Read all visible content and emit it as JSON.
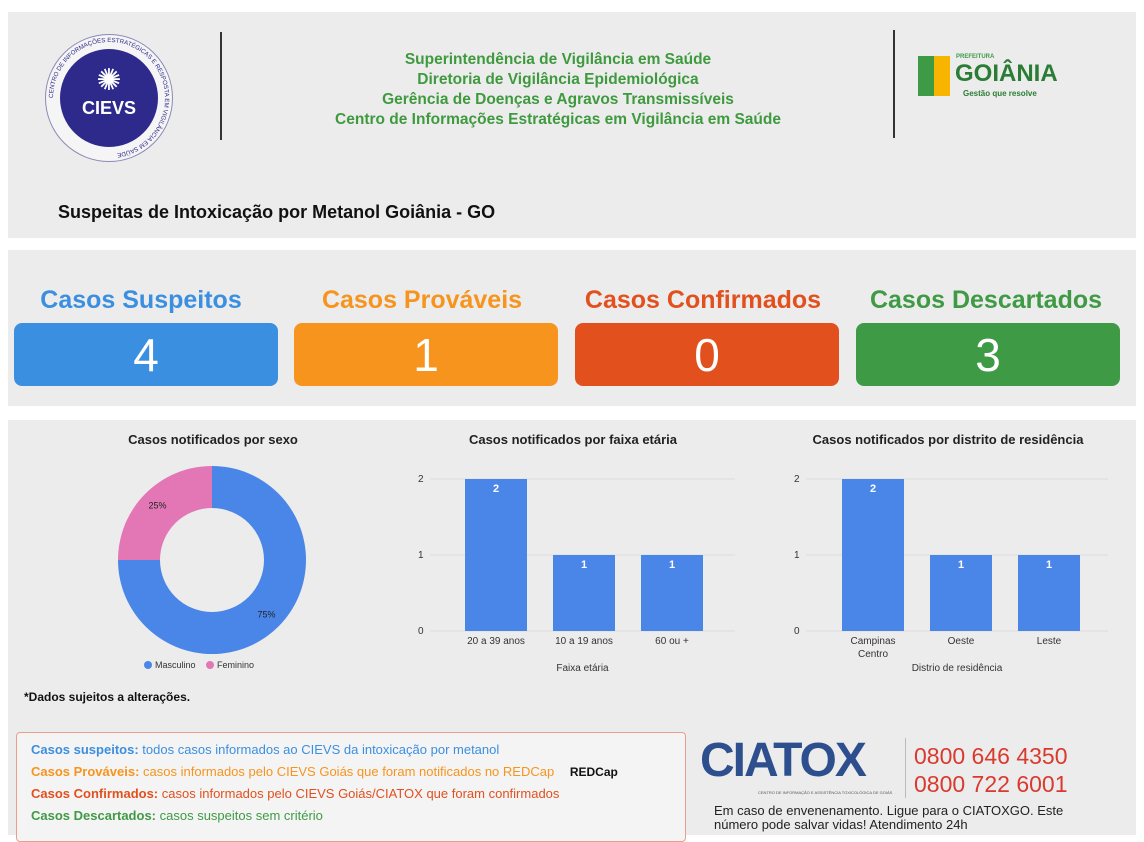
{
  "header": {
    "org_lines": [
      "Superintendência de Vigilância em Saúde",
      "Diretoria de Vigilância Epidemiológica",
      "Gerência de Doenças e Agravos Transmissíveis",
      "Centro de Informações Estratégicas em Vigilância em Saúde"
    ],
    "title": "Suspeitas de Intoxicação por Metanol Goiânia - GO",
    "cievs_logo": "CIEVS",
    "cievs_ring": "CENTRO DE INFORMAÇÕES ESTRATÉGICAS E RESPOSTA EM VIGILÂNCIA EM SAÚDE",
    "goiania_logo": {
      "small": "PREFEITURA",
      "name": "GOIÂNIA",
      "tagline": "Gestão que resolve"
    }
  },
  "kpis": [
    {
      "label": "Casos Suspeitos",
      "value": "4",
      "color": "#3b8fe0"
    },
    {
      "label": "Casos Prováveis",
      "value": "1",
      "color": "#f7941d"
    },
    {
      "label": "Casos Confirmados",
      "value": "0",
      "color": "#e2501e"
    },
    {
      "label": "Casos Descartados",
      "value": "3",
      "color": "#3f9a45"
    }
  ],
  "chart_data": [
    {
      "type": "pie",
      "title": "Casos notificados por sexo",
      "categories": [
        "Masculino",
        "Feminino"
      ],
      "values": [
        75,
        25
      ],
      "labels": [
        "75%",
        "25%"
      ],
      "colors": [
        "#4a86e8",
        "#e377b5"
      ],
      "legend": "bottom"
    },
    {
      "type": "bar",
      "title": "Casos notificados por faixa etária",
      "xlabel": "Faixa etária",
      "categories": [
        "20 a 39 anos",
        "10 a 19 anos",
        "60 ou +"
      ],
      "values": [
        2,
        1,
        1
      ],
      "ylim": [
        0,
        2
      ],
      "yticks": [
        "0",
        "1",
        "2"
      ]
    },
    {
      "type": "bar",
      "title": "Casos notificados por distrito de residência",
      "xlabel": "Distrio de residência",
      "categories": [
        "Campinas Centro",
        "Oeste",
        "Leste"
      ],
      "values": [
        2,
        1,
        1
      ],
      "ylim": [
        0,
        2
      ],
      "yticks": [
        "0",
        "1",
        "2"
      ]
    }
  ],
  "note": "*Dados sujeitos a alterações.",
  "definitions": [
    {
      "term": "Casos suspeitos:",
      "text": "todos casos informados ao CIEVS da intoxicação por metanol",
      "color": "#3b8fe0"
    },
    {
      "term": "Casos Prováveis:",
      "text": "casos informados pelo CIEVS Goiás que foram notificados no REDCap",
      "color": "#f7941d"
    },
    {
      "term": "Casos Confirmados:",
      "text": "casos informados pelo CIEVS Goiás/CIATOX que foram confirmados",
      "color": "#e2501e"
    },
    {
      "term": "Casos Descartados:",
      "text": "casos suspeitos sem critério",
      "color": "#3f9a45"
    }
  ],
  "redcap_logo": "REDCap",
  "ciatox": {
    "logo": "CIATOX",
    "logo_sub": "CENTRO DE INFORMAÇÃO E ASSISTÊNCIA TOXICOLÓGICA DE GOIÁS",
    "phones": [
      "0800 646 4350",
      "0800 722 6001"
    ],
    "text": "Em caso de envenenamento. Ligue para o CIATOXGO. Este número pode salvar vidas! Atendimento 24h"
  }
}
